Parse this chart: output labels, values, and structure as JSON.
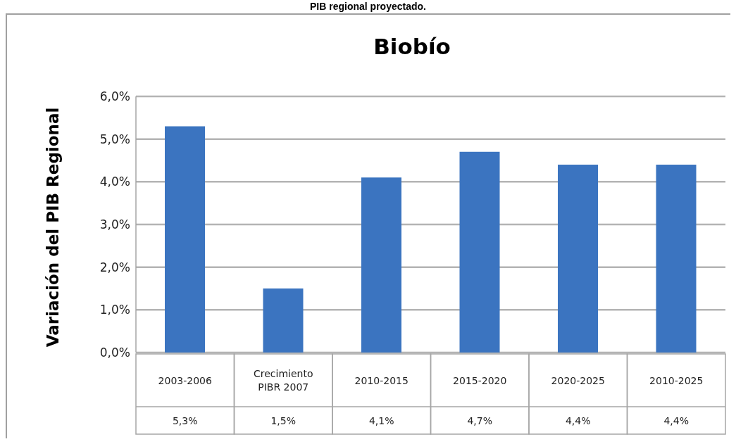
{
  "chart_data": {
    "type": "bar",
    "title": "Biobío",
    "ylabel": "Variación del PIB Regional",
    "annotations": [
      "PIB regional proyectado."
    ],
    "categories": [
      "2003-2006",
      "Crecimiento PIBR 2007",
      "2010-2015",
      "2015-2020",
      "2020-2025",
      "2010-2025"
    ],
    "values": [
      5.3,
      1.5,
      4.1,
      4.7,
      4.4,
      4.4
    ],
    "value_labels": [
      "5,3%",
      "1,5%",
      "4,1%",
      "4,7%",
      "4,4%",
      "4,4%"
    ],
    "color": "#3b74c0",
    "ylim": [
      0,
      6
    ],
    "yticks": [
      {
        "value": 0,
        "label": "0,0%"
      },
      {
        "value": 1,
        "label": "1,0%"
      },
      {
        "value": 2,
        "label": "2,0%"
      },
      {
        "value": 3,
        "label": "3,0%"
      },
      {
        "value": 4,
        "label": "4,0%"
      },
      {
        "value": 5,
        "label": "5,0%"
      },
      {
        "value": 6,
        "label": "6,0%"
      }
    ],
    "grid": "y"
  }
}
